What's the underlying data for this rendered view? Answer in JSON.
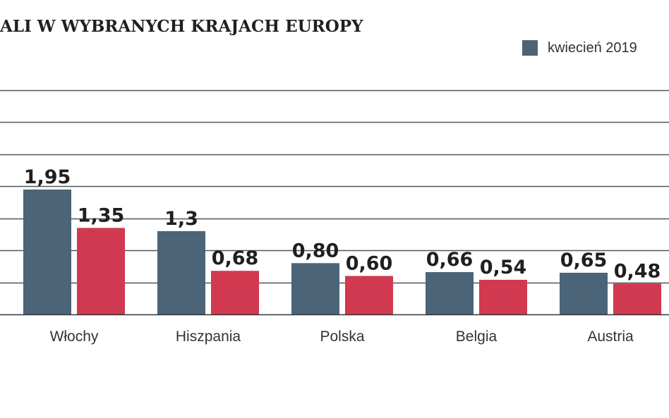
{
  "chart_data": {
    "type": "bar",
    "title": "ALI W WYBRANYCH KRAJACH EUROPY",
    "categories": [
      "Włochy",
      "Hiszpania",
      "Polska",
      "Belgia",
      "Austria"
    ],
    "series": [
      {
        "name": "kwiecień 2019",
        "values": [
          1.95,
          1.3,
          0.8,
          0.66,
          0.65
        ],
        "labels": [
          "1,95",
          "1,3",
          "0,80",
          "0,66",
          "0,65"
        ],
        "color": "#4b6478"
      },
      {
        "values": [
          1.35,
          0.68,
          0.6,
          0.54,
          0.48
        ],
        "labels": [
          "1,35",
          "0,68",
          "0,60",
          "0,54",
          "0,48"
        ],
        "color": "#d0394f"
      }
    ],
    "ylim": [
      0,
      3.5
    ],
    "grid": true,
    "legend_position": "top-right",
    "gridline_color": "#555555"
  }
}
